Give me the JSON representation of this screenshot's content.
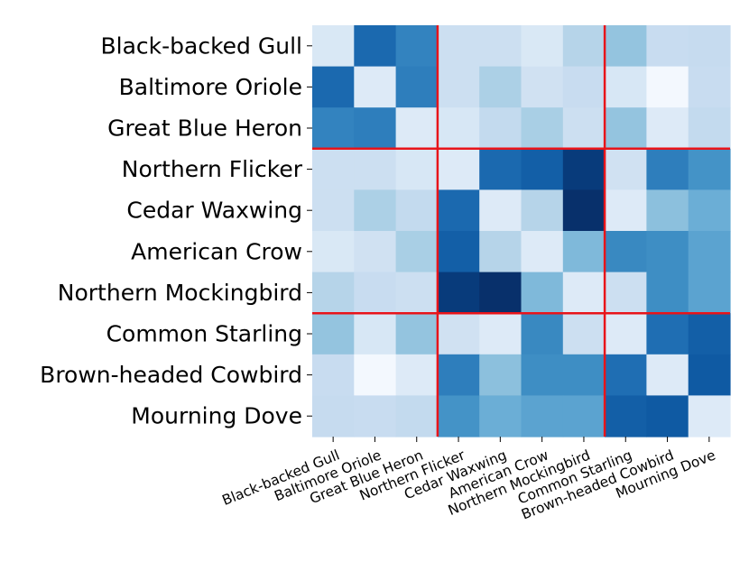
{
  "chart_data": {
    "type": "heatmap",
    "title": "",
    "xlabel": "",
    "ylabel": "",
    "categories": [
      "Black-backed Gull",
      "Baltimore Oriole",
      "Great Blue Heron",
      "Northern Flicker",
      "Cedar Waxwing",
      "American Crow",
      "Northern Mockingbird",
      "Common Starling",
      "Brown-headed Cowbird",
      "Mourning Dove"
    ],
    "colormap": "Blues",
    "color_low": "#f7fbff",
    "color_high": "#08306b",
    "value_range": [
      0,
      1
    ],
    "group_boundaries_after_index": [
      2,
      6
    ],
    "boundary_color": "#e8141a",
    "matrix": [
      [
        0.15,
        0.78,
        0.68,
        0.22,
        0.22,
        0.15,
        0.3,
        0.4,
        0.24,
        0.25
      ],
      [
        0.78,
        0.13,
        0.7,
        0.22,
        0.33,
        0.2,
        0.24,
        0.16,
        0.02,
        0.24
      ],
      [
        0.68,
        0.7,
        0.13,
        0.16,
        0.26,
        0.34,
        0.22,
        0.4,
        0.13,
        0.26
      ],
      [
        0.22,
        0.22,
        0.16,
        0.13,
        0.78,
        0.82,
        0.96,
        0.2,
        0.7,
        0.62
      ],
      [
        0.22,
        0.33,
        0.26,
        0.78,
        0.13,
        0.3,
        1.0,
        0.13,
        0.42,
        0.5
      ],
      [
        0.15,
        0.2,
        0.34,
        0.82,
        0.3,
        0.13,
        0.45,
        0.66,
        0.64,
        0.55
      ],
      [
        0.3,
        0.24,
        0.22,
        0.96,
        1.0,
        0.45,
        0.13,
        0.22,
        0.64,
        0.55
      ],
      [
        0.4,
        0.16,
        0.4,
        0.2,
        0.13,
        0.66,
        0.22,
        0.13,
        0.76,
        0.82
      ],
      [
        0.24,
        0.02,
        0.13,
        0.7,
        0.42,
        0.64,
        0.64,
        0.76,
        0.13,
        0.84
      ],
      [
        0.25,
        0.24,
        0.26,
        0.62,
        0.5,
        0.55,
        0.55,
        0.82,
        0.84,
        0.13
      ]
    ]
  }
}
